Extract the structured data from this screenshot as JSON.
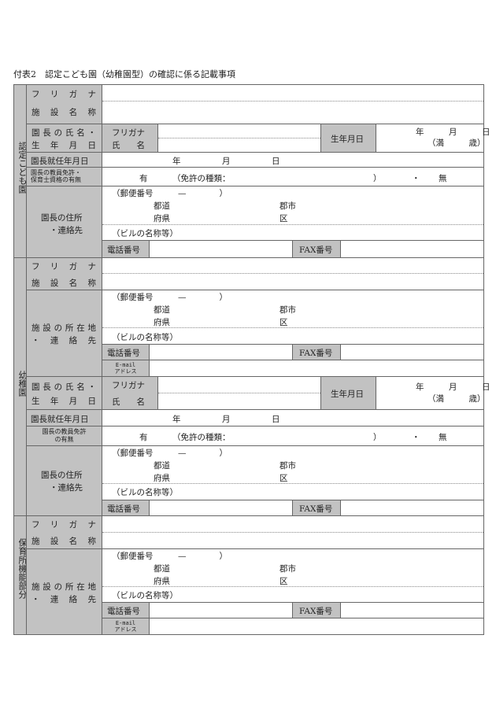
{
  "title": "付表2　認定こども園（幼稚園型）の確認に係る記載事項",
  "sections": {
    "kodomoen": "認定こども園",
    "yochien": "幼稚園",
    "hoikusho": "保育所機能部分"
  },
  "labels": {
    "furigana": "フリガナ",
    "facility_name": "施設名称",
    "director_name_1": "園長の氏名・",
    "director_name_2": "生年月日",
    "furigana_short": "フリガナ",
    "name": "氏　　名",
    "dob": "生年月日",
    "appointed": "園長就任年月日",
    "license_1": "園長の教員免許・",
    "license_2": "保育士資格の有無",
    "license_y_1": "園長の教員免許",
    "license_y_2": "の有無",
    "director_address_1": "園長の住所",
    "director_address_2": "・連絡先",
    "facility_address_1": "施設の所在地",
    "facility_address_2": "・連絡先",
    "phone": "電話番号",
    "fax": "FAX番号",
    "email_1": "E-mail",
    "email_2": "アドレス"
  },
  "values": {
    "dob_line1": "年　　　月　　　日",
    "dob_line2": "（満　　　歳）",
    "appointed_date": "年　　　　　月　　　　　日",
    "license_yes": "有",
    "license_type": "（免許の種類：",
    "license_close": "）",
    "license_dot": "・",
    "license_no": "無",
    "postal": "（郵便番号　　　—　　　　）",
    "todo": "都道",
    "fuken": "府県",
    "gunshi": "郡市",
    "ku": "区",
    "building": "（ビルの名称等）"
  }
}
